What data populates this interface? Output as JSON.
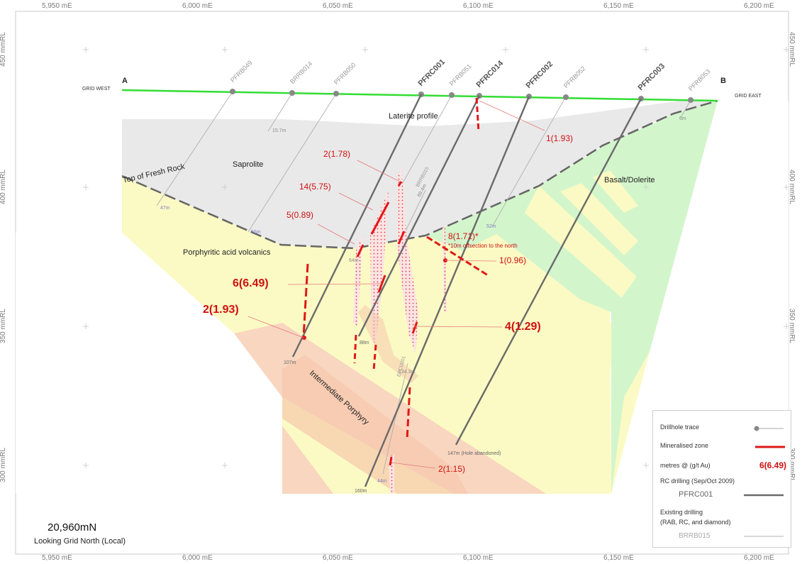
{
  "axes": {
    "easting_ticks": [
      "5,950 mE",
      "6,000 mE",
      "6,050 mE",
      "6,100 mE",
      "6,150 mE",
      "6,200 mE"
    ],
    "rl_ticks": [
      "450 mmRL",
      "400 mmRL",
      "350 mmRL",
      "300 mmRL"
    ]
  },
  "section": {
    "end_a": "A",
    "end_b": "B",
    "grid_west": "GRID WEST",
    "grid_east": "GRID EAST",
    "northing": "20,960mN",
    "view": "Looking Grid North (Local)"
  },
  "geology": {
    "laterite": "Laterite profile",
    "saprolite": "Saprolite",
    "fresh_rock": "Top of Fresh Rock",
    "basalt": "Basalt/Dolerite",
    "volcanics": "Porphyritic acid volcanics",
    "porphyry": "Intermediate Porphyry"
  },
  "drillholes": {
    "main": [
      "PFRC001",
      "PFRC014",
      "PFRC002",
      "PFRC003"
    ],
    "existing": [
      "PFRB049",
      "BRRB014",
      "PFRB050",
      "PFRB051",
      "PFRB052",
      "PFRB053",
      "BRRB015",
      "EPC0001"
    ],
    "depths": [
      "107m",
      "88m",
      "160m",
      "147m (Hole abandoned)",
      "47m",
      "56m",
      "52m",
      "44m",
      "134.3m",
      "89.4m",
      "15.7m",
      "6m",
      "64m"
    ]
  },
  "intercepts": {
    "i1": "1(1.93)",
    "i2": "2(1.78)",
    "i3": "14(5.75)",
    "i4": "5(0.89)",
    "i5": "8(1.71)*",
    "i5_note": "*10m offsection to the north",
    "i6": "1(0.96)",
    "i7": "6(6.49)",
    "i8": "2(1.93)",
    "i9": "4(1.29)",
    "i10": "2(1.15)"
  },
  "legend": {
    "trace": "Drillhole trace",
    "zone": "Mineralised zone",
    "metres": "metres @ (g/t Au)",
    "metres_example": "6(6.49)",
    "rc": "RC drilling (Sep/Oct 2009)",
    "rc_example": "PFRC001",
    "existing": "Existing drilling",
    "existing_sub": "(RAB, RC, and diamond)",
    "existing_example": "BRRB015"
  },
  "colors": {
    "surface": "#33dd33",
    "saprolite": "#e9e9e9",
    "volcanics": "#fbfac4",
    "basalt": "#d3f5cc",
    "porphyry": "#f9d6c0",
    "mineral": "#e01818"
  }
}
